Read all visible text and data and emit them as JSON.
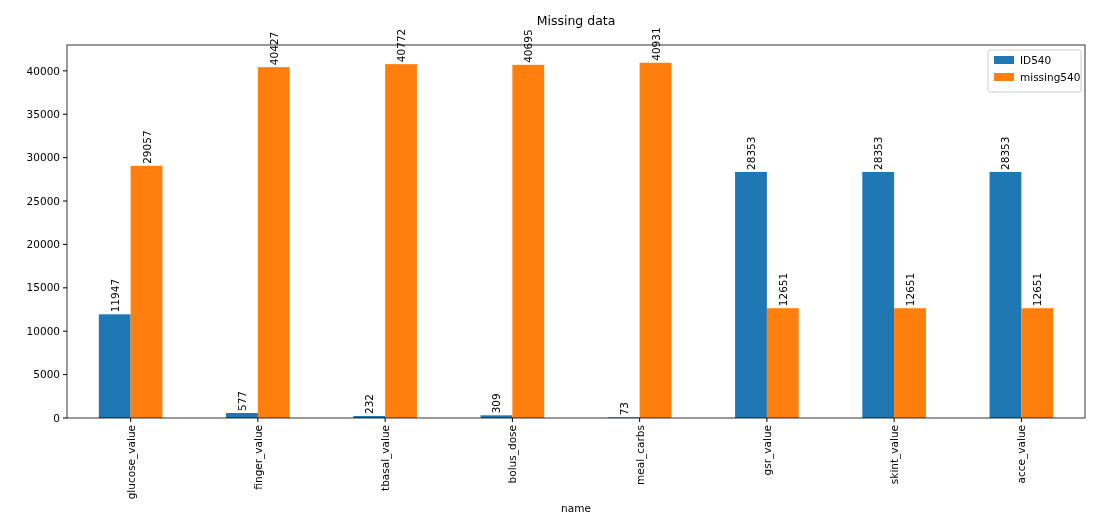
{
  "chart_data": {
    "type": "bar",
    "title": "Missing data",
    "xlabel": "name",
    "categories": [
      "glucose_value",
      "finger_value",
      "tbasal_value",
      "bolus_dose",
      "meal_carbs",
      "gsr_value",
      "skint_value",
      "acce_value"
    ],
    "series": [
      {
        "name": "ID540",
        "color": "#1f77b4",
        "values": [
          11947,
          577,
          232,
          309,
          73,
          28353,
          28353,
          28353
        ]
      },
      {
        "name": "missing540",
        "color": "#ff7f0e",
        "values": [
          29057,
          40427,
          40772,
          40695,
          40931,
          12651,
          12651,
          12651
        ]
      }
    ],
    "ylim": [
      0,
      42978
    ],
    "yticks": [
      0,
      5000,
      10000,
      15000,
      20000,
      25000,
      30000,
      35000,
      40000
    ],
    "data_labels": true,
    "legend": "top right",
    "grid": false
  }
}
